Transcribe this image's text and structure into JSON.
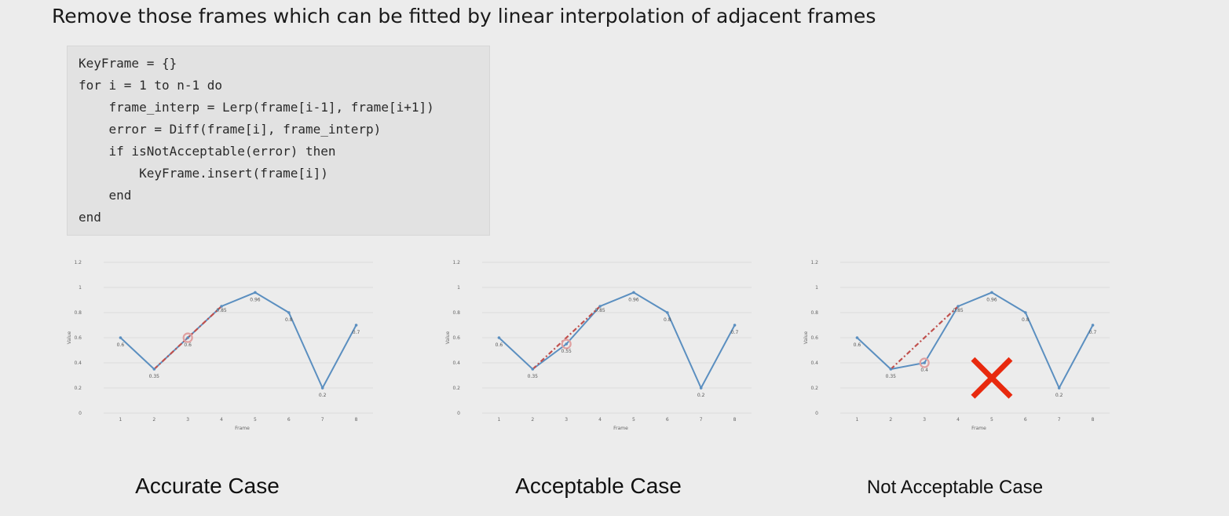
{
  "title": "Remove those frames which can be fitted by linear interpolation of adjacent frames",
  "code": [
    "KeyFrame = {}",
    "for i = 1 to n-1 do",
    "    frame_interp = Lerp(frame[i-1], frame[i+1])",
    "    error = Diff(frame[i], frame_interp)",
    "    if isNotAcceptable(error) then",
    "        KeyFrame.insert(frame[i])",
    "    end",
    "end"
  ],
  "colors": {
    "line": "#5b8fc0",
    "interp": "#c0504d",
    "highlight": "#e0a0a0",
    "cross": "#e8290e",
    "grid": "#dcdcdc"
  },
  "chart_data": [
    {
      "type": "line",
      "x": [
        1,
        2,
        3,
        4,
        5,
        6,
        7,
        8
      ],
      "values": [
        0.6,
        0.35,
        0.6,
        0.85,
        0.96,
        0.8,
        0.2,
        0.7
      ],
      "data_labels": [
        "0.6",
        "0.35",
        "0.6",
        "0.85",
        "0.96",
        "0.8",
        "0.2",
        "0.7"
      ],
      "interp_line": {
        "x": [
          2,
          4
        ],
        "y": [
          0.35,
          0.85
        ]
      },
      "highlight_x": 3,
      "xlabel": "Frame",
      "ylabel": "Value",
      "ylim": [
        0,
        1.2
      ],
      "y_ticks": [
        "0",
        "0.2",
        "0.4",
        "0.6",
        "0.8",
        "1",
        "1.2"
      ],
      "x_ticks": [
        "1",
        "2",
        "3",
        "4",
        "5",
        "6",
        "7",
        "8"
      ],
      "grid": true,
      "caption": "Accurate Case"
    },
    {
      "type": "line",
      "x": [
        1,
        2,
        3,
        4,
        5,
        6,
        7,
        8
      ],
      "values": [
        0.6,
        0.35,
        0.55,
        0.85,
        0.96,
        0.8,
        0.2,
        0.7
      ],
      "data_labels": [
        "0.6",
        "0.35",
        "0.55",
        "0.85",
        "0.96",
        "0.8",
        "0.2",
        "0.7"
      ],
      "interp_line": {
        "x": [
          2,
          4
        ],
        "y": [
          0.35,
          0.85
        ]
      },
      "highlight_x": 3,
      "xlabel": "Frame",
      "ylabel": "Value",
      "ylim": [
        0,
        1.2
      ],
      "y_ticks": [
        "0",
        "0.2",
        "0.4",
        "0.6",
        "0.8",
        "1",
        "1.2"
      ],
      "x_ticks": [
        "1",
        "2",
        "3",
        "4",
        "5",
        "6",
        "7",
        "8"
      ],
      "grid": true,
      "caption": "Acceptable Case"
    },
    {
      "type": "line",
      "x": [
        1,
        2,
        3,
        4,
        5,
        6,
        7,
        8
      ],
      "values": [
        0.6,
        0.35,
        0.4,
        0.85,
        0.96,
        0.8,
        0.2,
        0.7
      ],
      "data_labels": [
        "0.6",
        "0.35",
        "0.4",
        "0.85",
        "0.96",
        "0.8",
        "0.2",
        "0.7"
      ],
      "interp_line": {
        "x": [
          2,
          4
        ],
        "y": [
          0.35,
          0.85
        ]
      },
      "highlight_x": 3,
      "xlabel": "Frame",
      "ylabel": "Value",
      "ylim": [
        0,
        1.2
      ],
      "y_ticks": [
        "0",
        "0.2",
        "0.4",
        "0.6",
        "0.8",
        "1",
        "1.2"
      ],
      "x_ticks": [
        "1",
        "2",
        "3",
        "4",
        "5",
        "6",
        "7",
        "8"
      ],
      "grid": true,
      "rejected": true,
      "caption": "Not Acceptable Case"
    }
  ]
}
